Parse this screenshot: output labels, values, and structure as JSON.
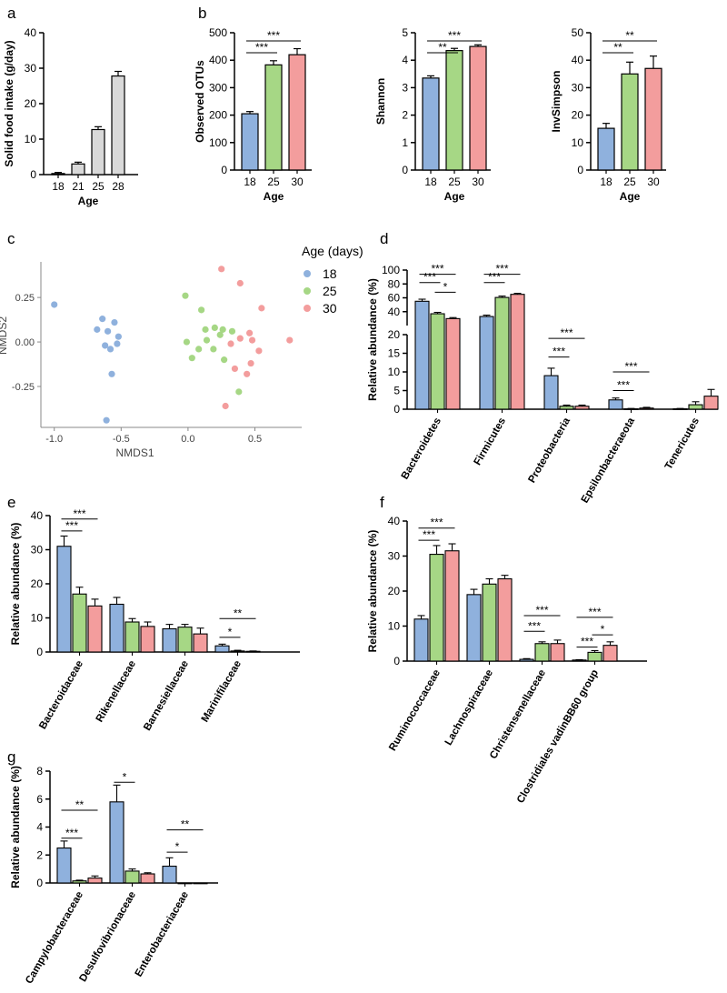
{
  "colors": {
    "c18": "#8fb1dd",
    "c25": "#a6d785",
    "c30": "#f39d9d",
    "gray": "#d9d9d9",
    "axis": "#000000",
    "cAlt": "#9e9e9e"
  },
  "panels": {
    "a": {
      "label": "a"
    },
    "b": {
      "label": "b"
    },
    "c": {
      "label": "c"
    },
    "d": {
      "label": "d"
    },
    "e": {
      "label": "e"
    },
    "f": {
      "label": "f"
    },
    "g": {
      "label": "g"
    }
  },
  "legend": {
    "title": "Age (days)",
    "items": [
      "18",
      "25",
      "30"
    ]
  },
  "chart_data": [
    {
      "id": "a",
      "type": "bar",
      "ylabel": "Solid food intake (g/day)",
      "xlabel": "Age",
      "categories": [
        "18",
        "21",
        "25",
        "28"
      ],
      "values": [
        0.3,
        3,
        12.7,
        27.8
      ],
      "errors": [
        0.3,
        0.5,
        0.8,
        1.3
      ],
      "ylim": [
        0,
        40
      ],
      "yticks": [
        0,
        10,
        20,
        30,
        40
      ],
      "yticklabels": [
        "0",
        "10",
        "20",
        "30",
        "40"
      ]
    },
    {
      "id": "b1",
      "type": "bar",
      "ylabel": "Observed OTUs",
      "xlabel": "Age",
      "categories": [
        "18",
        "25",
        "30"
      ],
      "values": [
        205,
        383,
        420
      ],
      "errors": [
        8,
        15,
        22
      ],
      "ylim": [
        0,
        500
      ],
      "yticks": [
        0,
        100,
        200,
        300,
        400,
        500
      ],
      "yticklabels": [
        "0",
        "100",
        "200",
        "300",
        "400",
        "500"
      ],
      "sig": [
        {
          "from": 0,
          "to": 1,
          "label": "***"
        },
        {
          "from": 0,
          "to": 2,
          "label": "***"
        }
      ]
    },
    {
      "id": "b2",
      "type": "bar",
      "ylabel": "Shannon",
      "xlabel": "Age",
      "categories": [
        "18",
        "25",
        "30"
      ],
      "values": [
        3.35,
        4.35,
        4.5
      ],
      "errors": [
        0.08,
        0.08,
        0.06
      ],
      "ylim": [
        0,
        5
      ],
      "yticks": [
        0,
        1,
        2,
        3,
        4,
        5
      ],
      "yticklabels": [
        "0",
        "1",
        "2",
        "3",
        "4",
        "5"
      ],
      "sig": [
        {
          "from": 0,
          "to": 1,
          "label": "**"
        },
        {
          "from": 0,
          "to": 2,
          "label": "***"
        }
      ]
    },
    {
      "id": "b3",
      "type": "bar",
      "ylabel": "InvSimpson",
      "xlabel": "Age",
      "categories": [
        "18",
        "25",
        "30"
      ],
      "values": [
        15.2,
        35,
        37
      ],
      "errors": [
        1.8,
        4.3,
        4.5
      ],
      "ylim": [
        0,
        50
      ],
      "yticks": [
        0,
        10,
        20,
        30,
        40,
        50
      ],
      "yticklabels": [
        "0",
        "10",
        "20",
        "30",
        "40",
        "50"
      ],
      "sig": [
        {
          "from": 0,
          "to": 1,
          "label": "**"
        },
        {
          "from": 0,
          "to": 2,
          "label": "**"
        }
      ]
    },
    {
      "id": "c",
      "type": "scatter",
      "xlabel": "NMDS1",
      "ylabel": "NMDS2",
      "xlim": [
        -1.1,
        0.85
      ],
      "ylim": [
        -0.48,
        0.45
      ],
      "xticks": [
        -1.0,
        -0.5,
        0.0,
        0.5
      ],
      "xticklabels": [
        "-1.0",
        "-0.5",
        "0.0",
        "0.5"
      ],
      "yticks": [
        -0.25,
        0.0,
        0.25
      ],
      "yticklabels": [
        "-0.25",
        "0.00",
        "0.25"
      ],
      "series": [
        {
          "name": "18",
          "points": [
            [
              -1.0,
              0.21
            ],
            [
              -0.64,
              0.13
            ],
            [
              -0.55,
              0.11
            ],
            [
              -0.68,
              0.07
            ],
            [
              -0.6,
              0.06
            ],
            [
              -0.52,
              0.03
            ],
            [
              -0.53,
              -0.01
            ],
            [
              -0.62,
              -0.02
            ],
            [
              -0.58,
              -0.04
            ],
            [
              -0.57,
              -0.18
            ],
            [
              -0.61,
              -0.44
            ]
          ]
        },
        {
          "name": "25",
          "points": [
            [
              -0.02,
              0.26
            ],
            [
              0.1,
              0.18
            ],
            [
              0.2,
              0.08
            ],
            [
              0.13,
              0.07
            ],
            [
              0.26,
              0.07
            ],
            [
              -0.01,
              0.0
            ],
            [
              0.14,
              0.01
            ],
            [
              0.24,
              0.04
            ],
            [
              0.33,
              0.06
            ],
            [
              0.08,
              -0.04
            ],
            [
              0.19,
              -0.04
            ],
            [
              0.03,
              -0.09
            ],
            [
              0.27,
              -0.1
            ],
            [
              0.38,
              -0.28
            ]
          ]
        },
        {
          "name": "30",
          "points": [
            [
              0.25,
              0.41
            ],
            [
              0.39,
              0.33
            ],
            [
              0.55,
              0.19
            ],
            [
              0.46,
              0.05
            ],
            [
              0.39,
              0.02
            ],
            [
              0.48,
              0.01
            ],
            [
              0.32,
              -0.01
            ],
            [
              0.53,
              -0.05
            ],
            [
              0.76,
              0.01
            ],
            [
              0.47,
              -0.12
            ],
            [
              0.35,
              -0.15
            ],
            [
              0.44,
              -0.18
            ],
            [
              0.28,
              -0.36
            ]
          ]
        }
      ]
    },
    {
      "id": "d",
      "type": "bar",
      "ylabel": "Relative abundance (%)",
      "categories": [
        "Bacteroidetes",
        "Firmicutes",
        "Proteobacteria",
        "Epsilonbacteraeota",
        "Tenericutes"
      ],
      "series": [
        {
          "name": "18",
          "values": [
            55,
            33,
            9,
            2.5,
            0.1
          ],
          "errors": [
            3,
            2,
            2,
            0.5,
            0.1
          ]
        },
        {
          "name": "25",
          "values": [
            37,
            60.5,
            0.8,
            0.1,
            1.2
          ],
          "errors": [
            2,
            2,
            0.3,
            0.1,
            0.8
          ]
        },
        {
          "name": "30",
          "values": [
            30,
            65,
            0.8,
            0.3,
            3.5
          ],
          "errors": [
            1.5,
            1.5,
            0.3,
            0.2,
            1.8
          ]
        }
      ],
      "ylim_lower": [
        0,
        20
      ],
      "ylim_upper": [
        20,
        100
      ],
      "yticks_lower": [
        0,
        5,
        10,
        15,
        20
      ],
      "yticklabels_lower": [
        "0",
        "5",
        "10",
        "15",
        "20"
      ],
      "yticks_upper": [
        40,
        60,
        80,
        100
      ],
      "yticklabels_upper": [
        "40",
        "60",
        "80",
        "100"
      ],
      "sig": [
        {
          "cat": 0,
          "from": 0,
          "to": 1,
          "label": "***",
          "y": 82
        },
        {
          "cat": 0,
          "from": 0,
          "to": 2,
          "label": "***",
          "y": 94
        },
        {
          "cat": 0,
          "from": 1,
          "to": 2,
          "label": "*",
          "y": 68
        },
        {
          "cat": 1,
          "from": 0,
          "to": 1,
          "label": "***",
          "y": 82
        },
        {
          "cat": 1,
          "from": 0,
          "to": 2,
          "label": "***",
          "y": 94
        },
        {
          "cat": 2,
          "from": 0,
          "to": 1,
          "label": "***",
          "y": 14
        },
        {
          "cat": 2,
          "from": 0,
          "to": 2,
          "label": "***",
          "y": 19
        },
        {
          "cat": 3,
          "from": 0,
          "to": 1,
          "label": "***",
          "y": 5
        },
        {
          "cat": 3,
          "from": 0,
          "to": 2,
          "label": "***",
          "y": 10
        }
      ]
    },
    {
      "id": "e",
      "type": "bar",
      "ylabel": "Relative abundance (%)",
      "categories": [
        "Bacteroidaceae",
        "Rikenellaceae",
        "Barnesiellaceae",
        "Marinifilaceae"
      ],
      "series": [
        {
          "name": "18",
          "values": [
            31,
            14,
            6.8,
            1.8
          ],
          "errors": [
            3,
            2,
            1.3,
            0.5
          ]
        },
        {
          "name": "25",
          "values": [
            17,
            8.8,
            7.3,
            0.3
          ],
          "errors": [
            2,
            1,
            0.8,
            0.2
          ]
        },
        {
          "name": "30",
          "values": [
            13.5,
            7.5,
            5.3,
            0.2
          ],
          "errors": [
            2,
            1.3,
            1.7,
            0.1
          ]
        }
      ],
      "ylim": [
        0,
        40
      ],
      "yticks": [
        0,
        10,
        20,
        30,
        40
      ],
      "yticklabels": [
        "0",
        "10",
        "20",
        "30",
        "40"
      ],
      "sig": [
        {
          "cat": 0,
          "from": 0,
          "to": 1,
          "label": "***",
          "y": 35.5
        },
        {
          "cat": 0,
          "from": 0,
          "to": 2,
          "label": "***",
          "y": 39
        },
        {
          "cat": 3,
          "from": 0,
          "to": 1,
          "label": "*",
          "y": 4.3
        },
        {
          "cat": 3,
          "from": 0,
          "to": 2,
          "label": "**",
          "y": 9.8
        }
      ]
    },
    {
      "id": "f",
      "type": "bar",
      "ylabel": "Relative abundance (%)",
      "categories": [
        "Ruminococcaceae",
        "Lachnospiraceae",
        "Christensenellaceae",
        "Clostridiales vadinBB60 group"
      ],
      "series": [
        {
          "name": "18",
          "values": [
            12,
            19,
            0.5,
            0.3
          ],
          "errors": [
            1,
            1.5,
            0.2,
            0.1
          ]
        },
        {
          "name": "25",
          "values": [
            30.5,
            22,
            5,
            2.5
          ],
          "errors": [
            2.5,
            1.5,
            0.5,
            0.5
          ]
        },
        {
          "name": "30",
          "values": [
            31.5,
            23.5,
            5,
            4.5
          ],
          "errors": [
            2,
            1,
            1,
            1
          ]
        }
      ],
      "ylim": [
        0,
        40
      ],
      "yticks": [
        0,
        10,
        20,
        30,
        40
      ],
      "yticklabels": [
        "0",
        "10",
        "20",
        "30",
        "40"
      ],
      "sig": [
        {
          "cat": 0,
          "from": 0,
          "to": 1,
          "label": "***",
          "y": 34.5
        },
        {
          "cat": 0,
          "from": 0,
          "to": 2,
          "label": "***",
          "y": 38
        },
        {
          "cat": 2,
          "from": 0,
          "to": 1,
          "label": "***",
          "y": 8.5
        },
        {
          "cat": 2,
          "from": 0,
          "to": 2,
          "label": "***",
          "y": 13
        },
        {
          "cat": 3,
          "from": 0,
          "to": 1,
          "label": "***",
          "y": 4
        },
        {
          "cat": 3,
          "from": 0,
          "to": 2,
          "label": "***",
          "y": 12.5
        },
        {
          "cat": 3,
          "from": 1,
          "to": 2,
          "label": "*",
          "y": 7.5
        }
      ]
    },
    {
      "id": "g",
      "type": "bar",
      "ylabel": "Relative abundance (%)",
      "categories": [
        "Campylobacteraceae",
        "Desulfovibrionaceae",
        "Enterobacteriaceae"
      ],
      "series": [
        {
          "name": "18",
          "values": [
            2.5,
            5.8,
            1.2
          ],
          "errors": [
            0.5,
            1.2,
            0.6
          ]
        },
        {
          "name": "25",
          "values": [
            0.15,
            0.85,
            0.0
          ],
          "errors": [
            0.05,
            0.15,
            0
          ]
        },
        {
          "name": "30",
          "values": [
            0.35,
            0.65,
            0.0
          ],
          "errors": [
            0.15,
            0.08,
            0
          ]
        }
      ],
      "ylim": [
        0,
        8
      ],
      "yticks": [
        0,
        2,
        4,
        6,
        8
      ],
      "yticklabels": [
        "0",
        "2",
        "4",
        "6",
        "8"
      ],
      "sig": [
        {
          "cat": 0,
          "from": 0,
          "to": 1,
          "label": "***",
          "y": 3.2
        },
        {
          "cat": 0,
          "from": 0,
          "to": 2,
          "label": "**",
          "y": 5.2
        },
        {
          "cat": 1,
          "from": 0,
          "to": 1,
          "label": "*",
          "y": 7.2
        },
        {
          "cat": 2,
          "from": 0,
          "to": 1,
          "label": "*",
          "y": 2.2
        },
        {
          "cat": 2,
          "from": 0,
          "to": 2,
          "label": "**",
          "y": 3.8
        }
      ]
    }
  ]
}
